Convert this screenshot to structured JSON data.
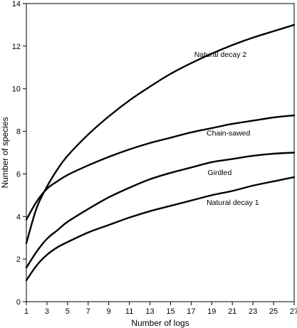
{
  "chart_data": {
    "type": "line",
    "title": "",
    "xlabel": "Number of logs",
    "ylabel": "Number of species",
    "xlim": [
      1,
      27
    ],
    "ylim": [
      0,
      14
    ],
    "x_ticks": [
      1,
      3,
      5,
      7,
      9,
      11,
      13,
      15,
      17,
      19,
      21,
      23,
      25,
      27
    ],
    "y_ticks": [
      0,
      2,
      4,
      6,
      8,
      10,
      12,
      14
    ],
    "grid": false,
    "legend": "none (series labeled directly on chart)",
    "line_color": "#000000",
    "series": [
      {
        "name": "Natural decay 2",
        "x": [
          1,
          2,
          3,
          4,
          5,
          7,
          9,
          11,
          13,
          15,
          17,
          19,
          21,
          23,
          25,
          27
        ],
        "y": [
          2.75,
          4.4,
          5.4,
          6.2,
          6.85,
          7.85,
          8.7,
          9.45,
          10.1,
          10.7,
          11.2,
          11.65,
          12.05,
          12.4,
          12.7,
          13.0
        ],
        "label_x": 17.3,
        "label_y": 11.5
      },
      {
        "name": "Chain-sawed",
        "x": [
          1,
          2,
          3,
          4,
          5,
          7,
          9,
          11,
          13,
          15,
          17,
          19,
          21,
          23,
          25,
          27
        ],
        "y": [
          3.85,
          4.7,
          5.3,
          5.65,
          5.95,
          6.4,
          6.8,
          7.15,
          7.45,
          7.7,
          7.95,
          8.15,
          8.35,
          8.5,
          8.65,
          8.75
        ],
        "label_x": 18.5,
        "label_y": 7.8
      },
      {
        "name": "Girdled",
        "x": [
          1,
          2,
          3,
          4,
          5,
          7,
          9,
          11,
          13,
          15,
          17,
          19,
          21,
          23,
          25,
          27
        ],
        "y": [
          1.6,
          2.35,
          2.95,
          3.35,
          3.75,
          4.35,
          4.9,
          5.35,
          5.75,
          6.05,
          6.3,
          6.55,
          6.7,
          6.85,
          6.95,
          7.0
        ],
        "label_x": 18.6,
        "label_y": 5.95
      },
      {
        "name": "Natural decay 1",
        "x": [
          1,
          2,
          3,
          4,
          5,
          7,
          9,
          11,
          13,
          15,
          17,
          19,
          21,
          23,
          25,
          27
        ],
        "y": [
          1.0,
          1.7,
          2.2,
          2.55,
          2.8,
          3.25,
          3.6,
          3.95,
          4.25,
          4.5,
          4.75,
          5.0,
          5.2,
          5.45,
          5.65,
          5.85
        ],
        "label_x": 18.5,
        "label_y": 4.55
      }
    ]
  }
}
